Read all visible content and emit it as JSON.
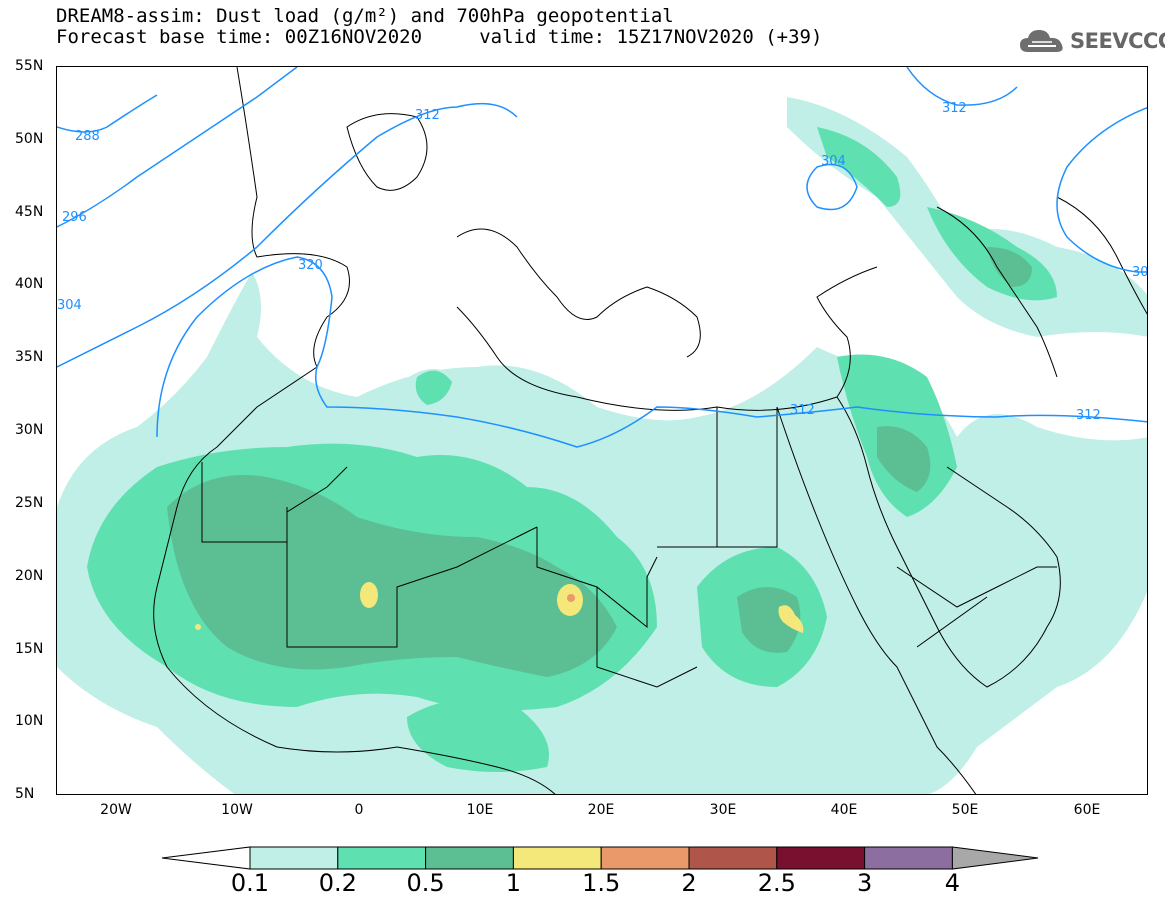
{
  "title": {
    "line1": "DREAM8-assim: Dust load (g/m²) and 700hPa geopotential",
    "line2": "Forecast base time: 00Z16NOV2020     valid time: 15Z17NOV2020 (+39)"
  },
  "logo": {
    "text": "SEEVCCC",
    "icon": "cloud-icon"
  },
  "axes": {
    "lat_labels": [
      "55N",
      "50N",
      "45N",
      "40N",
      "35N",
      "30N",
      "25N",
      "20N",
      "15N",
      "10N",
      "5N"
    ],
    "lon_labels": [
      "20W",
      "10W",
      "0",
      "10E",
      "20E",
      "30E",
      "40E",
      "50E",
      "60E"
    ],
    "lat_range": [
      5,
      55
    ],
    "lon_range": [
      -25,
      65
    ]
  },
  "contours": {
    "color": "#1e90ff",
    "labels": [
      "288",
      "296",
      "304",
      "320",
      "312",
      "312",
      "304",
      "312",
      "312",
      "312",
      "30"
    ]
  },
  "colorbar": {
    "levels": [
      "0.1",
      "0.2",
      "0.5",
      "1",
      "1.5",
      "2",
      "2.5",
      "3",
      "4"
    ],
    "colors": [
      "#bfefe6",
      "#5fe0b0",
      "#5cbf94",
      "#f5e87a",
      "#ea9a6a",
      "#b0554a",
      "#7a1030",
      "#8c6ea0",
      "#a8a8a8"
    ],
    "under_color": "#ffffff"
  },
  "map_colors": {
    "land": "#ffffff",
    "sea": "#ffffff",
    "coast": "#000000"
  }
}
